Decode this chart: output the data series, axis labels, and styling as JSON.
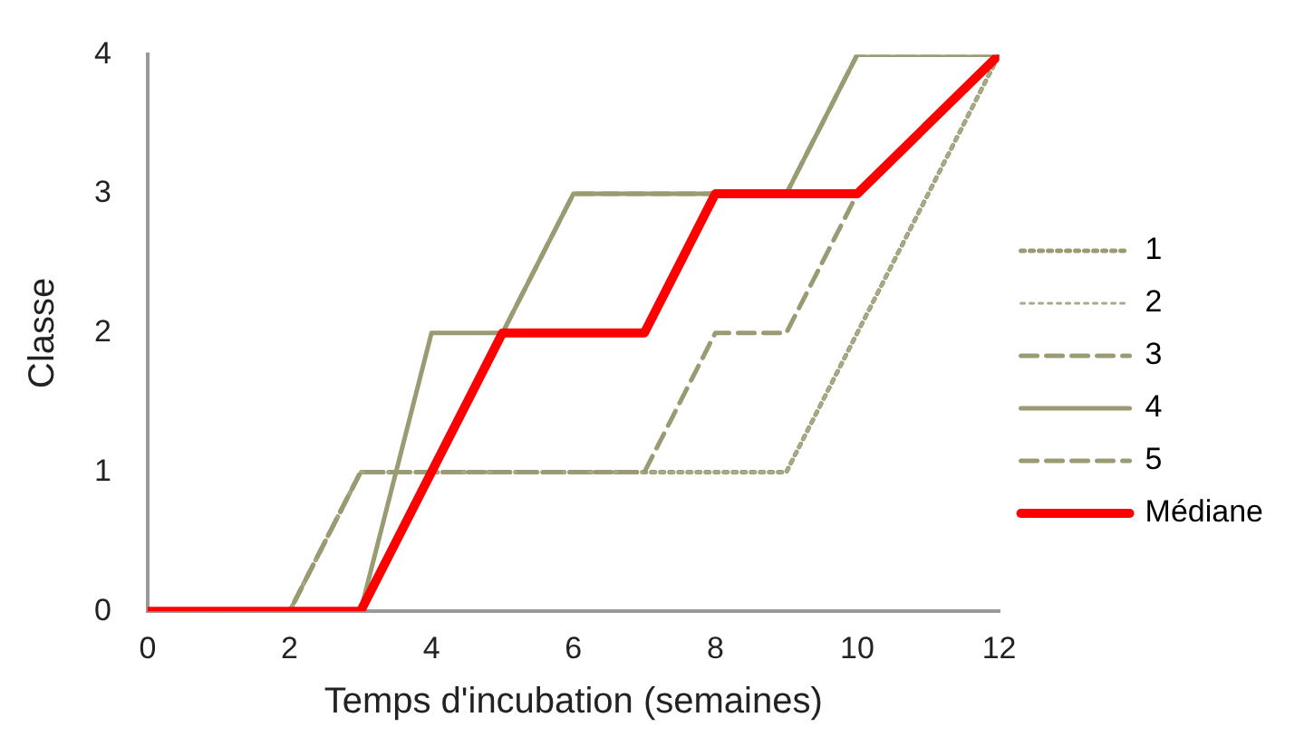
{
  "chart_data": {
    "type": "line",
    "xlabel": "Temps d'incubation (semaines)",
    "ylabel": "Classe",
    "x": [
      0,
      2,
      3,
      4,
      5,
      6,
      7,
      8,
      9,
      10,
      12
    ],
    "xlim": [
      0,
      12
    ],
    "xticks": [
      0,
      2,
      4,
      6,
      8,
      10,
      12
    ],
    "ylim": [
      0,
      4
    ],
    "yticks": [
      0,
      1,
      2,
      3,
      4
    ],
    "grid": false,
    "legend": "right",
    "marker": "none",
    "series": [
      {
        "name": "1",
        "color": "#9a9b73",
        "line_style": "dotted",
        "values": [
          0,
          0,
          1,
          1,
          1,
          1,
          1,
          1,
          1,
          2,
          4
        ]
      },
      {
        "name": "2",
        "color": "#a9aa88",
        "line_style": "dotted",
        "values": [
          0,
          0,
          1,
          1,
          1,
          1,
          1,
          1,
          1,
          2,
          4
        ]
      },
      {
        "name": "3",
        "color": "#9a9b73",
        "line_style": "dashed",
        "values": [
          0,
          0,
          1,
          1,
          2,
          3,
          3,
          3,
          3,
          4,
          4
        ]
      },
      {
        "name": "4",
        "color": "#9a9b73",
        "line_style": "solid",
        "values": [
          0,
          0,
          0,
          2,
          2,
          3,
          3,
          3,
          3,
          4,
          4
        ]
      },
      {
        "name": "5",
        "color": "#9a9b73",
        "line_style": "dashed",
        "values": [
          0,
          0,
          1,
          1,
          1,
          1,
          1,
          2,
          2,
          3,
          4
        ]
      },
      {
        "name": "Médiane",
        "color": "#ff0000",
        "line_style": "solid",
        "x": [
          0,
          3,
          4,
          5,
          7,
          8,
          10,
          12
        ],
        "values": [
          0,
          0,
          1,
          2,
          2,
          3,
          3,
          4
        ]
      }
    ]
  }
}
